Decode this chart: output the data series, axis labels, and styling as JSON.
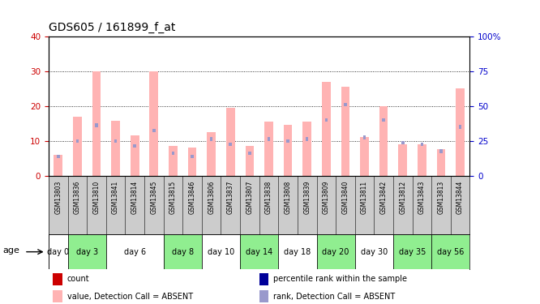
{
  "title": "GDS605 / 161899_f_at",
  "samples": [
    "GSM13803",
    "GSM13836",
    "GSM13810",
    "GSM13841",
    "GSM13814",
    "GSM13845",
    "GSM13815",
    "GSM13846",
    "GSM13806",
    "GSM13837",
    "GSM13807",
    "GSM13838",
    "GSM13808",
    "GSM13839",
    "GSM13809",
    "GSM13840",
    "GSM13811",
    "GSM13842",
    "GSM13812",
    "GSM13843",
    "GSM13813",
    "GSM13844"
  ],
  "pink_values": [
    6.0,
    17.0,
    30.0,
    15.8,
    11.5,
    30.0,
    8.5,
    8.0,
    12.5,
    19.5,
    8.5,
    15.5,
    14.5,
    15.5,
    27.0,
    25.5,
    11.0,
    20.0,
    9.0,
    9.0,
    7.5,
    25.0
  ],
  "blue_values_scaled": [
    5.5,
    10.0,
    14.5,
    10.0,
    8.5,
    13.0,
    6.5,
    5.5,
    10.5,
    9.0,
    6.5,
    10.5,
    10.0,
    10.5,
    16.0,
    20.5,
    11.0,
    16.0,
    9.5,
    9.0,
    7.0,
    14.0
  ],
  "day_groups": [
    {
      "label": "day 0",
      "samples": [
        "GSM13803"
      ],
      "color": "#ffffff"
    },
    {
      "label": "day 3",
      "samples": [
        "GSM13836",
        "GSM13810"
      ],
      "color": "#90ee90"
    },
    {
      "label": "day 6",
      "samples": [
        "GSM13841",
        "GSM13814",
        "GSM13845"
      ],
      "color": "#ffffff"
    },
    {
      "label": "day 8",
      "samples": [
        "GSM13815",
        "GSM13846"
      ],
      "color": "#90ee90"
    },
    {
      "label": "day 10",
      "samples": [
        "GSM13806",
        "GSM13837"
      ],
      "color": "#ffffff"
    },
    {
      "label": "day 14",
      "samples": [
        "GSM13807",
        "GSM13838"
      ],
      "color": "#90ee90"
    },
    {
      "label": "day 18",
      "samples": [
        "GSM13808",
        "GSM13839"
      ],
      "color": "#ffffff"
    },
    {
      "label": "day 20",
      "samples": [
        "GSM13809",
        "GSM13840"
      ],
      "color": "#90ee90"
    },
    {
      "label": "day 30",
      "samples": [
        "GSM13811",
        "GSM13842"
      ],
      "color": "#ffffff"
    },
    {
      "label": "day 35",
      "samples": [
        "GSM13812",
        "GSM13843"
      ],
      "color": "#90ee90"
    },
    {
      "label": "day 56",
      "samples": [
        "GSM13813",
        "GSM13844"
      ],
      "color": "#90ee90"
    }
  ],
  "ylim_left": [
    0,
    40
  ],
  "ylim_right": [
    0,
    100
  ],
  "yticks_left": [
    0,
    10,
    20,
    30,
    40
  ],
  "yticks_right": [
    0,
    25,
    50,
    75,
    100
  ],
  "ytick_labels_right": [
    "0",
    "25",
    "50",
    "75",
    "100%"
  ],
  "pink_color": "#ffb3b3",
  "blue_color": "#9999cc",
  "red_color": "#cc0000",
  "dark_blue_color": "#000099",
  "bar_width": 0.45,
  "blue_bar_width": 0.15,
  "legend_items": [
    {
      "color": "#cc0000",
      "label": "count"
    },
    {
      "color": "#000099",
      "label": "percentile rank within the sample"
    },
    {
      "color": "#ffb3b3",
      "label": "value, Detection Call = ABSENT"
    },
    {
      "color": "#9999cc",
      "label": "rank, Detection Call = ABSENT"
    }
  ],
  "background_color": "#ffffff",
  "plot_bg_color": "#ffffff",
  "axis_label_color_left": "#cc0000",
  "axis_label_color_right": "#0000cc",
  "sample_bg_color": "#cccccc"
}
